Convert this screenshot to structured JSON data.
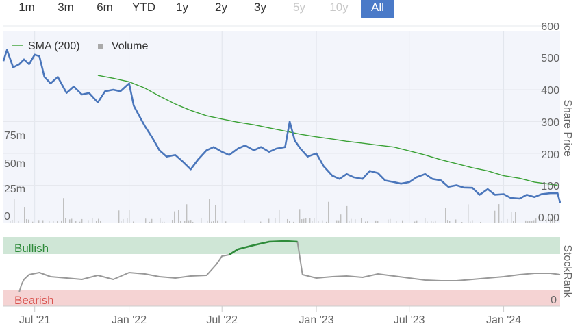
{
  "range_buttons": [
    {
      "label": "1m",
      "state": "normal"
    },
    {
      "label": "3m",
      "state": "normal"
    },
    {
      "label": "6m",
      "state": "normal"
    },
    {
      "label": "YTD",
      "state": "normal"
    },
    {
      "label": "1y",
      "state": "normal"
    },
    {
      "label": "2y",
      "state": "normal"
    },
    {
      "label": "3y",
      "state": "normal"
    },
    {
      "label": "5y",
      "state": "disabled"
    },
    {
      "label": "10y",
      "state": "disabled"
    },
    {
      "label": "All",
      "state": "active"
    }
  ],
  "colors": {
    "price": "#4a76bb",
    "sma": "#3aa135",
    "volume": "#c0c0c0",
    "rank": "#999999",
    "rank_bullish": "#2e8b3a",
    "bullish_band": "#cfe6d6",
    "bearish_band": "#f5d3d3",
    "bullish_text": "#2e8b3a",
    "bearish_text": "#d9534f",
    "plot_bg": "#f3f5fb",
    "grid": "#dcdcdc",
    "accent": "#4a7ac8"
  },
  "chart_data": [
    {
      "type": "line",
      "ylabel": "Share Price",
      "y_ticks": [
        "600",
        "500",
        "400",
        "300",
        "200",
        "100",
        "0.00"
      ],
      "ylim": [
        0,
        600
      ],
      "x_ticks": [
        "Jul '21",
        "Jan '22",
        "Jul '22",
        "Jan '23",
        "Jul '23",
        "Jan '24"
      ],
      "xlim": [
        "2021-05-01",
        "2024-04-20"
      ],
      "legend": [
        "SMA (200)",
        "Volume"
      ],
      "legend_position": "top-left",
      "series": [
        {
          "name": "SMA (200)",
          "x": [
            "2021-11-01",
            "2021-12-01",
            "2022-01-01",
            "2022-02-01",
            "2022-03-01",
            "2022-04-01",
            "2022-05-01",
            "2022-06-01",
            "2022-07-01",
            "2022-08-01",
            "2022-09-01",
            "2022-10-01",
            "2022-11-01",
            "2022-12-01",
            "2023-01-01",
            "2023-02-01",
            "2023-03-01",
            "2023-04-01",
            "2023-05-01",
            "2023-06-01",
            "2023-07-01",
            "2023-08-01",
            "2023-09-01",
            "2023-10-01",
            "2023-11-01",
            "2023-12-01",
            "2024-01-01",
            "2024-02-01",
            "2024-03-01",
            "2024-04-15"
          ],
          "y": [
            445,
            436,
            425,
            405,
            380,
            355,
            335,
            318,
            308,
            298,
            290,
            280,
            270,
            260,
            252,
            245,
            238,
            232,
            226,
            220,
            208,
            195,
            180,
            168,
            155,
            145,
            130,
            122,
            110,
            100
          ]
        },
        {
          "name": "Price",
          "x": [
            "2021-05-01",
            "2021-05-08",
            "2021-05-20",
            "2021-06-01",
            "2021-06-10",
            "2021-06-20",
            "2021-07-01",
            "2021-07-10",
            "2021-07-20",
            "2021-08-01",
            "2021-08-15",
            "2021-09-01",
            "2021-09-15",
            "2021-10-01",
            "2021-10-15",
            "2021-11-01",
            "2021-11-15",
            "2021-12-01",
            "2021-12-15",
            "2022-01-01",
            "2022-01-10",
            "2022-01-20",
            "2022-02-01",
            "2022-02-15",
            "2022-03-01",
            "2022-03-15",
            "2022-04-01",
            "2022-04-15",
            "2022-05-01",
            "2022-05-15",
            "2022-06-01",
            "2022-06-15",
            "2022-07-01",
            "2022-07-15",
            "2022-08-01",
            "2022-08-15",
            "2022-09-01",
            "2022-09-15",
            "2022-10-01",
            "2022-10-15",
            "2022-11-01",
            "2022-11-10",
            "2022-11-20",
            "2022-12-01",
            "2022-12-15",
            "2023-01-01",
            "2023-01-15",
            "2023-02-01",
            "2023-02-15",
            "2023-03-01",
            "2023-03-15",
            "2023-04-01",
            "2023-04-15",
            "2023-05-01",
            "2023-05-15",
            "2023-06-01",
            "2023-06-15",
            "2023-07-01",
            "2023-07-15",
            "2023-08-01",
            "2023-08-15",
            "2023-09-01",
            "2023-09-15",
            "2023-10-01",
            "2023-10-15",
            "2023-11-01",
            "2023-11-15",
            "2023-12-01",
            "2023-12-15",
            "2024-01-01",
            "2024-01-15",
            "2024-02-01",
            "2024-02-15",
            "2024-03-01",
            "2024-03-15",
            "2024-04-01",
            "2024-04-15",
            "2024-04-20"
          ],
          "y": [
            490,
            525,
            470,
            480,
            495,
            480,
            510,
            505,
            440,
            420,
            440,
            390,
            410,
            385,
            390,
            360,
            395,
            400,
            395,
            420,
            350,
            320,
            285,
            250,
            210,
            190,
            195,
            175,
            150,
            180,
            210,
            220,
            205,
            195,
            215,
            225,
            210,
            220,
            205,
            215,
            220,
            300,
            240,
            215,
            190,
            200,
            160,
            130,
            120,
            135,
            125,
            120,
            145,
            138,
            115,
            110,
            105,
            110,
            125,
            135,
            120,
            115,
            95,
            100,
            93,
            92,
            70,
            88,
            70,
            72,
            60,
            58,
            70,
            63,
            72,
            75,
            75,
            45
          ]
        },
        {
          "name": "Volume",
          "unit": "m",
          "y_ticks": [
            "75m",
            "50m",
            "25m",
            "0"
          ],
          "ylim": [
            0,
            100
          ],
          "note": "sparse small volume bars"
        }
      ]
    },
    {
      "type": "line",
      "ylabel": "StockRank",
      "y_ticks": [
        "0"
      ],
      "ylim": [
        0,
        100
      ],
      "bands": [
        {
          "label": "Bullish",
          "range": [
            80,
            100
          ]
        },
        {
          "label": "Bearish",
          "range": [
            0,
            20
          ]
        }
      ],
      "series": [
        {
          "name": "StockRank",
          "x": [
            "2021-06-01",
            "2021-06-05",
            "2021-06-10",
            "2021-06-20",
            "2021-07-10",
            "2021-08-01",
            "2021-09-01",
            "2021-10-01",
            "2021-11-01",
            "2021-12-01",
            "2022-01-01",
            "2022-02-01",
            "2022-03-01",
            "2022-04-01",
            "2022-05-01",
            "2022-06-01",
            "2022-06-20",
            "2022-07-01",
            "2022-07-15",
            "2022-08-01",
            "2022-09-01",
            "2022-10-01",
            "2022-11-01",
            "2022-11-25",
            "2022-12-05",
            "2023-01-01",
            "2023-02-01",
            "2023-03-01",
            "2023-04-01",
            "2023-05-01",
            "2023-06-01",
            "2023-07-01",
            "2023-08-01",
            "2023-09-01",
            "2023-10-01",
            "2023-11-01",
            "2023-12-01",
            "2024-01-01",
            "2024-02-01",
            "2024-03-01",
            "2024-04-01",
            "2024-04-20"
          ],
          "y": [
            20,
            30,
            38,
            45,
            48,
            42,
            40,
            38,
            44,
            38,
            48,
            46,
            42,
            40,
            43,
            44,
            60,
            72,
            74,
            82,
            88,
            93,
            94,
            93,
            45,
            40,
            42,
            43,
            41,
            46,
            43,
            40,
            37,
            36,
            36,
            38,
            40,
            42,
            45,
            47,
            47,
            45
          ]
        }
      ]
    }
  ]
}
